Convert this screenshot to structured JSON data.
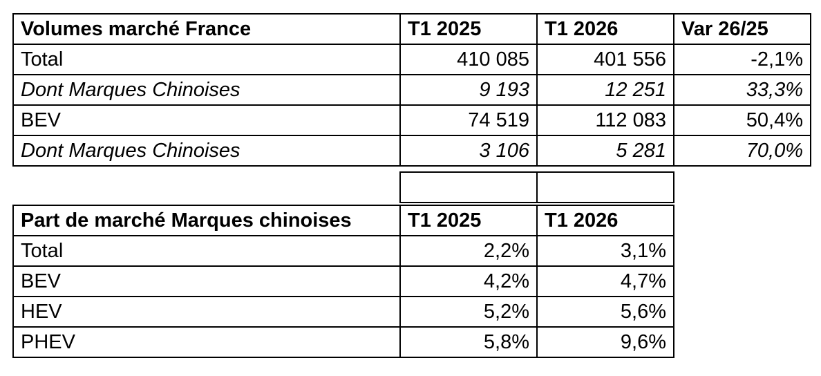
{
  "volumes": {
    "headers": [
      "Volumes marché France",
      "T1 2025",
      "T1 2026",
      "Var 26/25"
    ],
    "rows": [
      {
        "label": "Total",
        "t1_2025": "410 085",
        "t1_2026": "401 556",
        "var": "-2,1%",
        "italic": false
      },
      {
        "label": "Dont Marques Chinoises",
        "t1_2025": "9 193",
        "t1_2026": "12 251",
        "var": "33,3%",
        "italic": true
      },
      {
        "label": "BEV",
        "t1_2025": "74 519",
        "t1_2026": "112 083",
        "var": "50,4%",
        "italic": false
      },
      {
        "label": "Dont Marques Chinoises",
        "t1_2025": "3 106",
        "t1_2026": "5 281",
        "var": "70,0%",
        "italic": true
      }
    ]
  },
  "share": {
    "headers": [
      "Part de marché Marques chinoises",
      "T1 2025",
      "T1 2026"
    ],
    "rows": [
      {
        "label": "Total",
        "t1_2025": "2,2%",
        "t1_2026": "3,1%"
      },
      {
        "label": "BEV",
        "t1_2025": "4,2%",
        "t1_2026": "4,7%"
      },
      {
        "label": "HEV",
        "t1_2025": "5,2%",
        "t1_2026": "5,6%"
      },
      {
        "label": "PHEV",
        "t1_2025": "5,8%",
        "t1_2026": "9,6%"
      }
    ]
  }
}
